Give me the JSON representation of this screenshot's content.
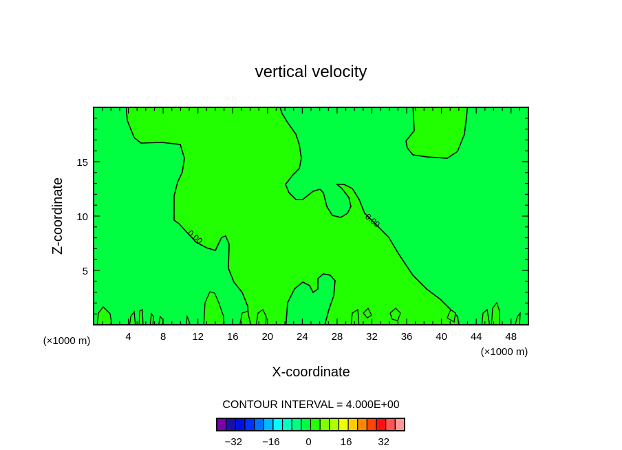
{
  "chart_data": {
    "type": "heatmap",
    "subtype": "filled-contour",
    "title": "vertical velocity",
    "xlabel": "X-coordinate",
    "ylabel": "Z-coordinate",
    "x_unit_label_left": "(×1000 m)",
    "x_unit_label_right": "(×1000 m)",
    "xlim": [
      0,
      50
    ],
    "ylim": [
      0,
      20
    ],
    "x_ticks": [
      4,
      8,
      12,
      16,
      20,
      24,
      28,
      32,
      36,
      40,
      44,
      48
    ],
    "x_tick_labels": [
      "4",
      "8",
      "12",
      "16",
      "20",
      "24",
      "28",
      "32",
      "36",
      "40",
      "44",
      "48"
    ],
    "y_ticks": [
      5,
      10,
      15
    ],
    "y_tick_labels": [
      "5",
      "10",
      "15"
    ],
    "contour_labels": [
      "0.00",
      "0.00"
    ],
    "contour_interval_text": "CONTOUR INTERVAL = 4.000E+00",
    "contour_interval": 4.0,
    "levels_visible": [
      -4,
      0,
      4
    ],
    "colorbar": {
      "colors": [
        "#7a00a8",
        "#1a0fa8",
        "#0010e0",
        "#0030ff",
        "#0070ff",
        "#00b8ff",
        "#00ffff",
        "#00ffc0",
        "#00ff80",
        "#00ff40",
        "#22ff00",
        "#80ff00",
        "#b0ff00",
        "#eeff00",
        "#ffcc00",
        "#ff8800",
        "#ff4400",
        "#ff1010",
        "#ff5555",
        "#ff9999"
      ],
      "labels": [
        "−32",
        "−16",
        "0",
        "16",
        "32"
      ],
      "label_values": [
        -32,
        -16,
        0,
        16,
        32
      ],
      "min": -40,
      "max": 40
    },
    "region_colors": {
      "negative_small": "#00ff40",
      "positive_small": "#22ff00"
    }
  }
}
